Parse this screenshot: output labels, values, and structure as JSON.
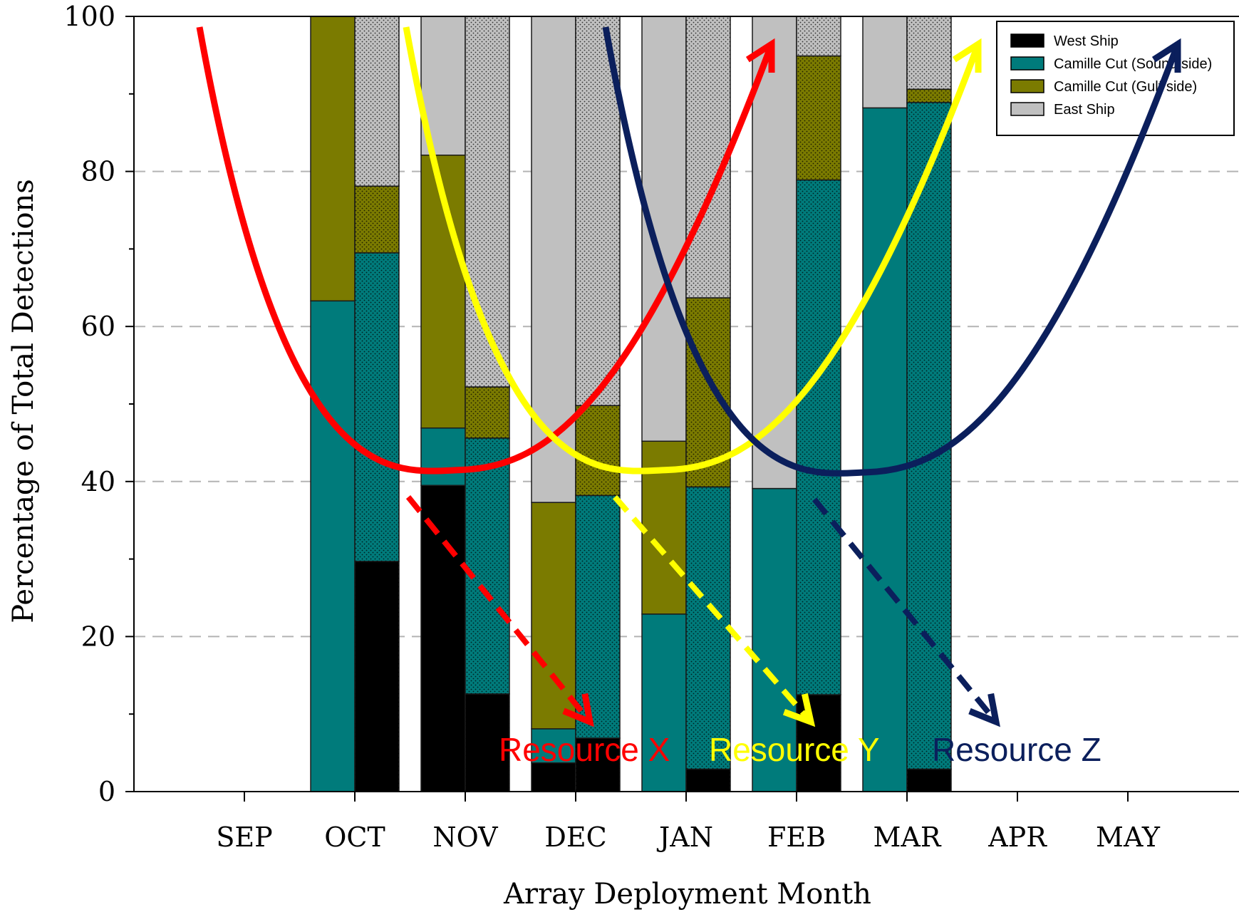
{
  "chart_data": {
    "type": "bar",
    "stacked": true,
    "xlabel": "Array Deployment Month",
    "ylabel": "Percentage of Total Detections",
    "ylim": [
      0,
      100
    ],
    "yticks": [
      0,
      20,
      40,
      60,
      80,
      100
    ],
    "grid": "horizontal dashed",
    "legend_position": "top-right",
    "months": [
      "SEP",
      "OCT",
      "NOV",
      "DEC",
      "JAN",
      "FEB",
      "MAR",
      "APR",
      "MAY"
    ],
    "series": [
      {
        "name": "West Ship",
        "color": "#000000"
      },
      {
        "name": "Camille Cut (Sound side)",
        "color": "#007b7b"
      },
      {
        "name": "Camille Cut (Gulf side)",
        "color": "#7b7b00"
      },
      {
        "name": "East Ship",
        "color": "#c0c0c0"
      }
    ],
    "bars": [
      {
        "month": "OCT",
        "position": "left",
        "pattern": "solid",
        "values": [
          0,
          63.3,
          36.7,
          0
        ]
      },
      {
        "month": "OCT",
        "position": "right",
        "pattern": "dotted",
        "values": [
          29.7,
          39.8,
          8.6,
          21.9
        ]
      },
      {
        "month": "NOV",
        "position": "left",
        "pattern": "solid",
        "values": [
          39.5,
          7.4,
          35.2,
          17.9
        ]
      },
      {
        "month": "NOV",
        "position": "right",
        "pattern": "dotted",
        "values": [
          12.6,
          33.0,
          6.6,
          47.8
        ]
      },
      {
        "month": "DEC",
        "position": "left",
        "pattern": "solid",
        "values": [
          3.7,
          4.4,
          29.2,
          62.7
        ]
      },
      {
        "month": "DEC",
        "position": "right",
        "pattern": "dotted",
        "values": [
          6.9,
          31.3,
          11.6,
          50.2
        ]
      },
      {
        "month": "JAN",
        "position": "left",
        "pattern": "solid",
        "values": [
          0,
          22.9,
          22.3,
          54.8
        ]
      },
      {
        "month": "JAN",
        "position": "right",
        "pattern": "dotted",
        "values": [
          2.9,
          36.4,
          24.4,
          36.3
        ]
      },
      {
        "month": "FEB",
        "position": "left",
        "pattern": "solid",
        "values": [
          0,
          39.1,
          0,
          60.9
        ]
      },
      {
        "month": "FEB",
        "position": "right",
        "pattern": "dotted",
        "values": [
          12.5,
          66.4,
          16.0,
          5.1
        ]
      },
      {
        "month": "MAR",
        "position": "left",
        "pattern": "solid",
        "values": [
          0,
          88.2,
          0,
          11.8
        ]
      },
      {
        "month": "MAR",
        "position": "right",
        "pattern": "dotted",
        "values": [
          2.9,
          86.0,
          1.7,
          9.4
        ]
      }
    ],
    "annotations": [
      {
        "label": "Resource X",
        "color": "#ff0000",
        "curve_minimum": {
          "month": "NOV",
          "value": 41.5
        },
        "dashed_arrow_target": {
          "month": "DEC",
          "value": 9
        }
      },
      {
        "label": "Resource Y",
        "color": "#ffff00",
        "curve_minimum": {
          "month": "JAN",
          "value": 41.5
        },
        "dashed_arrow_target": {
          "month": "FEB",
          "value": 9
        }
      },
      {
        "label": "Resource Z",
        "color": "#0b1f5c",
        "curve_minimum": {
          "month": "MAR",
          "value": 41.2
        },
        "dashed_arrow_target": {
          "month": "MAR",
          "value": 9
        }
      }
    ]
  }
}
